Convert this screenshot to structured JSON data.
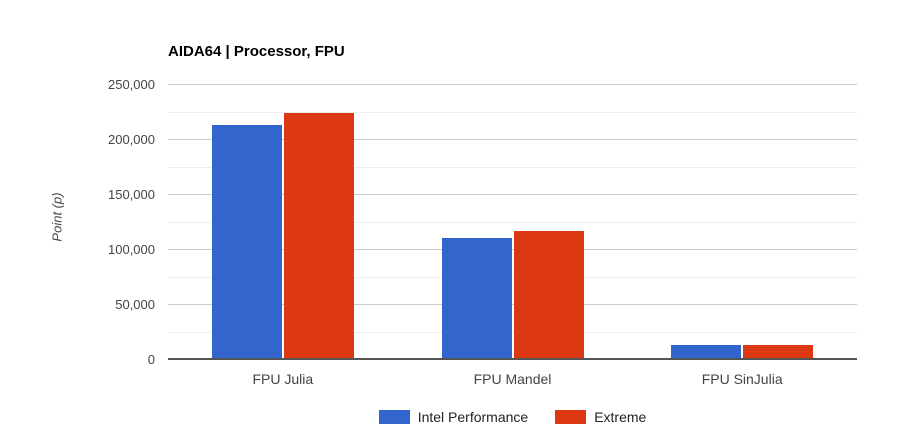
{
  "chart_data": {
    "type": "bar",
    "title": "AIDA64 | Processor, FPU",
    "xlabel": "",
    "ylabel": "Point (p)",
    "categories": [
      "FPU Julia",
      "FPU Mandel",
      "FPU SinJulia"
    ],
    "series": [
      {
        "name": "Intel Performance",
        "color": "#3366cc",
        "values": [
          214000,
          111000,
          14000
        ]
      },
      {
        "name": "Extreme",
        "color": "#dc3912",
        "values": [
          225000,
          117000,
          13600
        ]
      }
    ],
    "ylim": [
      0,
      250000
    ],
    "ytick_step": 50000,
    "minor_tick_step": 25000,
    "ytick_labels": [
      "0",
      "50,000",
      "100,000",
      "150,000",
      "200,000",
      "250,000"
    ],
    "grid": true,
    "legend_position": "bottom",
    "colors": {
      "major_gridline": "#cccccc",
      "minor_gridline": "#ededed",
      "axis_line": "#555555",
      "tick_text": "#444444",
      "legend_text": "#222222",
      "title_text": "#000000",
      "background": "#ffffff"
    }
  }
}
